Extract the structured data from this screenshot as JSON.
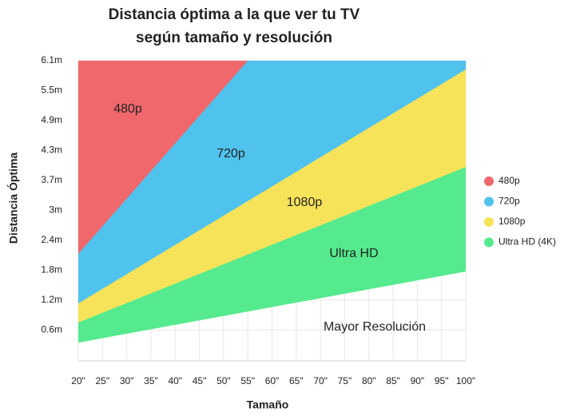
{
  "chart_data": {
    "type": "area",
    "title": "Distancia óptima a la que ver tu TV según tamaño y resolución",
    "x_label": "Tamaño",
    "y_label": "Distancia Óptima",
    "xlim": [
      20,
      100
    ],
    "xticks": [
      {
        "value": 20,
        "label": "20\""
      },
      {
        "value": 25,
        "label": "25\""
      },
      {
        "value": 30,
        "label": "30\""
      },
      {
        "value": 35,
        "label": "35\""
      },
      {
        "value": 40,
        "label": "40\""
      },
      {
        "value": 45,
        "label": "45\""
      },
      {
        "value": 50,
        "label": "50\""
      },
      {
        "value": 55,
        "label": "55\""
      },
      {
        "value": 60,
        "label": "60\""
      },
      {
        "value": 65,
        "label": "65\""
      },
      {
        "value": 70,
        "label": "70\""
      },
      {
        "value": 75,
        "label": "75\""
      },
      {
        "value": 80,
        "label": "80\""
      },
      {
        "value": 85,
        "label": "85\""
      },
      {
        "value": 90,
        "label": "90\""
      },
      {
        "value": 95,
        "label": "95\""
      },
      {
        "value": 100,
        "label": "100\""
      }
    ],
    "ylim": [
      0,
      6.1
    ],
    "yticks": [
      {
        "value": 0.61,
        "label": "0.6m"
      },
      {
        "value": 1.22,
        "label": "1.2m"
      },
      {
        "value": 1.83,
        "label": "1.8m"
      },
      {
        "value": 2.44,
        "label": "2.4m"
      },
      {
        "value": 3.05,
        "label": "3m"
      },
      {
        "value": 3.66,
        "label": "3.7m"
      },
      {
        "value": 4.27,
        "label": "4.3m"
      },
      {
        "value": 4.88,
        "label": "4.9m"
      },
      {
        "value": 5.49,
        "label": "5.5m"
      },
      {
        "value": 6.1,
        "label": "6.1m"
      }
    ],
    "grid": true,
    "legend": "right",
    "series": [
      {
        "name": "Ultra HD (4K)",
        "color": "#55ea8d",
        "x": [
          20,
          100
        ],
        "values": [
          0.35,
          1.8
        ]
      },
      {
        "name": "1080p",
        "color": "#f7e35a",
        "x": [
          20,
          100
        ],
        "values": [
          0.76,
          3.93
        ]
      },
      {
        "name": "720p",
        "color": "#4fc3ee",
        "x": [
          20,
          100
        ],
        "values": [
          1.15,
          5.92
        ]
      },
      {
        "name": "480p",
        "color": "#f0686c",
        "x": [
          20,
          55
        ],
        "values": [
          2.16,
          6.1
        ]
      }
    ],
    "annotations": [
      "480p",
      "720p",
      "1080p",
      "Ultra HD",
      "Mayor Resolución"
    ]
  }
}
